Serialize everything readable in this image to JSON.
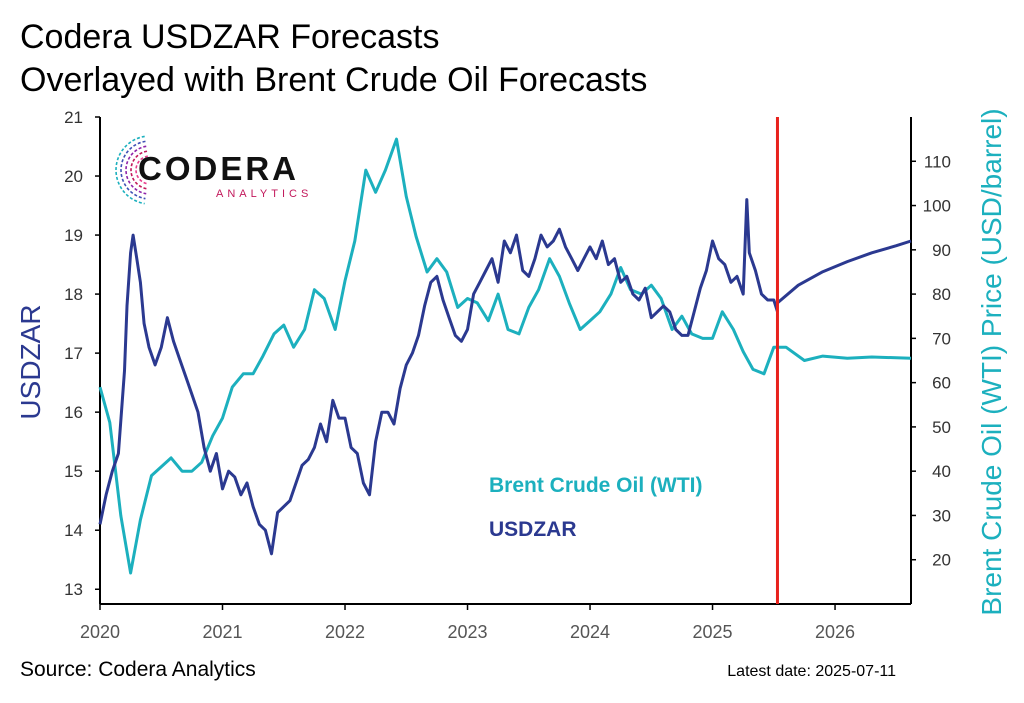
{
  "title_line1": "Codera USDZAR Forecasts",
  "title_line2": "Overlayed with Brent Crude Oil Forecasts",
  "logo": {
    "name": "CODERA",
    "sub": "ANALYTICS"
  },
  "source": "Source: Codera Analytics",
  "latest_date": "Latest date: 2025-07-11",
  "colors": {
    "usdzar": "#2b3990",
    "oil": "#1cb0be",
    "cutoff": "#e8211c"
  },
  "chart_data": {
    "type": "line",
    "x_ticks": [
      "2020",
      "2021",
      "2022",
      "2023",
      "2024",
      "2025",
      "2026"
    ],
    "xlim": [
      2020.0,
      2026.62
    ],
    "y_left": {
      "label": "USDZAR",
      "lim": [
        12.75,
        21.0
      ],
      "ticks": [
        "13",
        "14",
        "15",
        "16",
        "17",
        "18",
        "19",
        "20",
        "21"
      ]
    },
    "y_right": {
      "label": "Brent Crude Oil (WTI) Price (USD/barrel)",
      "lim": [
        10,
        120
      ],
      "ticks": [
        "20",
        "30",
        "40",
        "50",
        "60",
        "70",
        "80",
        "90",
        "100",
        "110"
      ]
    },
    "cutoff_x": 2025.53,
    "series": [
      {
        "name": "USDZAR",
        "axis": "left",
        "x": [
          2020.0,
          2020.05,
          2020.1,
          2020.15,
          2020.2,
          2020.22,
          2020.25,
          2020.27,
          2020.3,
          2020.33,
          2020.36,
          2020.4,
          2020.45,
          2020.5,
          2020.55,
          2020.6,
          2020.65,
          2020.7,
          2020.75,
          2020.8,
          2020.85,
          2020.9,
          2020.95,
          2021.0,
          2021.05,
          2021.1,
          2021.15,
          2021.2,
          2021.25,
          2021.3,
          2021.35,
          2021.4,
          2021.45,
          2021.5,
          2021.55,
          2021.6,
          2021.65,
          2021.7,
          2021.75,
          2021.8,
          2021.85,
          2021.9,
          2021.95,
          2022.0,
          2022.05,
          2022.1,
          2022.15,
          2022.2,
          2022.25,
          2022.3,
          2022.35,
          2022.4,
          2022.45,
          2022.5,
          2022.55,
          2022.6,
          2022.65,
          2022.7,
          2022.75,
          2022.8,
          2022.85,
          2022.9,
          2022.95,
          2023.0,
          2023.05,
          2023.1,
          2023.15,
          2023.2,
          2023.25,
          2023.3,
          2023.35,
          2023.4,
          2023.45,
          2023.5,
          2023.55,
          2023.6,
          2023.65,
          2023.7,
          2023.75,
          2023.8,
          2023.85,
          2023.9,
          2023.95,
          2024.0,
          2024.05,
          2024.1,
          2024.15,
          2024.2,
          2024.25,
          2024.3,
          2024.35,
          2024.4,
          2024.45,
          2024.5,
          2024.55,
          2024.6,
          2024.65,
          2024.7,
          2024.75,
          2024.8,
          2024.85,
          2024.9,
          2024.95,
          2025.0,
          2025.05,
          2025.1,
          2025.15,
          2025.2,
          2025.25,
          2025.28,
          2025.3,
          2025.35,
          2025.4,
          2025.45,
          2025.5,
          2025.53
        ],
        "values": [
          14.1,
          14.6,
          15.0,
          15.3,
          16.7,
          17.8,
          18.7,
          19.0,
          18.6,
          18.2,
          17.5,
          17.1,
          16.8,
          17.1,
          17.6,
          17.2,
          16.9,
          16.6,
          16.3,
          16.0,
          15.4,
          15.0,
          15.3,
          14.7,
          15.0,
          14.9,
          14.6,
          14.8,
          14.4,
          14.1,
          14.0,
          13.6,
          14.3,
          14.4,
          14.5,
          14.8,
          15.1,
          15.2,
          15.4,
          15.8,
          15.5,
          16.2,
          15.9,
          15.9,
          15.4,
          15.3,
          14.8,
          14.6,
          15.5,
          16.0,
          16.0,
          15.8,
          16.4,
          16.8,
          17.0,
          17.3,
          17.8,
          18.2,
          18.3,
          17.9,
          17.6,
          17.3,
          17.2,
          17.4,
          18.0,
          18.2,
          18.4,
          18.6,
          18.2,
          18.9,
          18.7,
          19.0,
          18.4,
          18.3,
          18.6,
          19.0,
          18.8,
          18.9,
          19.1,
          18.8,
          18.6,
          18.4,
          18.6,
          18.8,
          18.6,
          18.9,
          18.5,
          18.6,
          18.2,
          18.3,
          18.0,
          17.9,
          18.1,
          17.6,
          17.7,
          17.8,
          17.7,
          17.4,
          17.3,
          17.3,
          17.7,
          18.1,
          18.4,
          18.9,
          18.6,
          18.5,
          18.2,
          18.3,
          18.0,
          19.6,
          18.7,
          18.4,
          18.0,
          17.9,
          17.9,
          17.7
        ],
        "forecast_x": [
          2025.53,
          2025.7,
          2025.9,
          2026.1,
          2026.3,
          2026.5,
          2026.62
        ],
        "forecast_values": [
          17.85,
          18.15,
          18.38,
          18.55,
          18.7,
          18.82,
          18.9
        ]
      },
      {
        "name": "Brent Crude Oil (WTI)",
        "axis": "right",
        "x": [
          2020.0,
          2020.08,
          2020.17,
          2020.25,
          2020.33,
          2020.42,
          2020.5,
          2020.58,
          2020.67,
          2020.75,
          2020.83,
          2020.92,
          2021.0,
          2021.08,
          2021.17,
          2021.25,
          2021.33,
          2021.42,
          2021.5,
          2021.58,
          2021.67,
          2021.75,
          2021.83,
          2021.92,
          2022.0,
          2022.08,
          2022.17,
          2022.25,
          2022.33,
          2022.42,
          2022.5,
          2022.58,
          2022.67,
          2022.75,
          2022.83,
          2022.92,
          2023.0,
          2023.08,
          2023.17,
          2023.25,
          2023.33,
          2023.42,
          2023.5,
          2023.58,
          2023.67,
          2023.75,
          2023.83,
          2023.92,
          2024.0,
          2024.08,
          2024.17,
          2024.25,
          2024.33,
          2024.42,
          2024.5,
          2024.58,
          2024.67,
          2024.75,
          2024.83,
          2024.92,
          2025.0,
          2025.08,
          2025.17,
          2025.25,
          2025.33,
          2025.42,
          2025.5,
          2025.53,
          2025.6,
          2025.75,
          2025.9,
          2026.1,
          2026.3,
          2026.5,
          2026.62
        ],
        "values": [
          59,
          51,
          30,
          17,
          29,
          39,
          41,
          43,
          40,
          40,
          42,
          48,
          52,
          59,
          62,
          62,
          66,
          71,
          73,
          68,
          72,
          81,
          79,
          72,
          83,
          92,
          108,
          103,
          108,
          115,
          102,
          93,
          85,
          88,
          85,
          77,
          79,
          78,
          74,
          80,
          72,
          71,
          77,
          81,
          88,
          84,
          78,
          72,
          74,
          76,
          80,
          86,
          81,
          80,
          82,
          79,
          72,
          75,
          71,
          70,
          70,
          76,
          72,
          67,
          63,
          62,
          68,
          68,
          68,
          65,
          66,
          65.5,
          65.8,
          65.6,
          65.5
        ]
      }
    ],
    "legend": [
      {
        "name": "Brent Crude Oil (WTI)"
      },
      {
        "name": "USDZAR"
      }
    ]
  }
}
